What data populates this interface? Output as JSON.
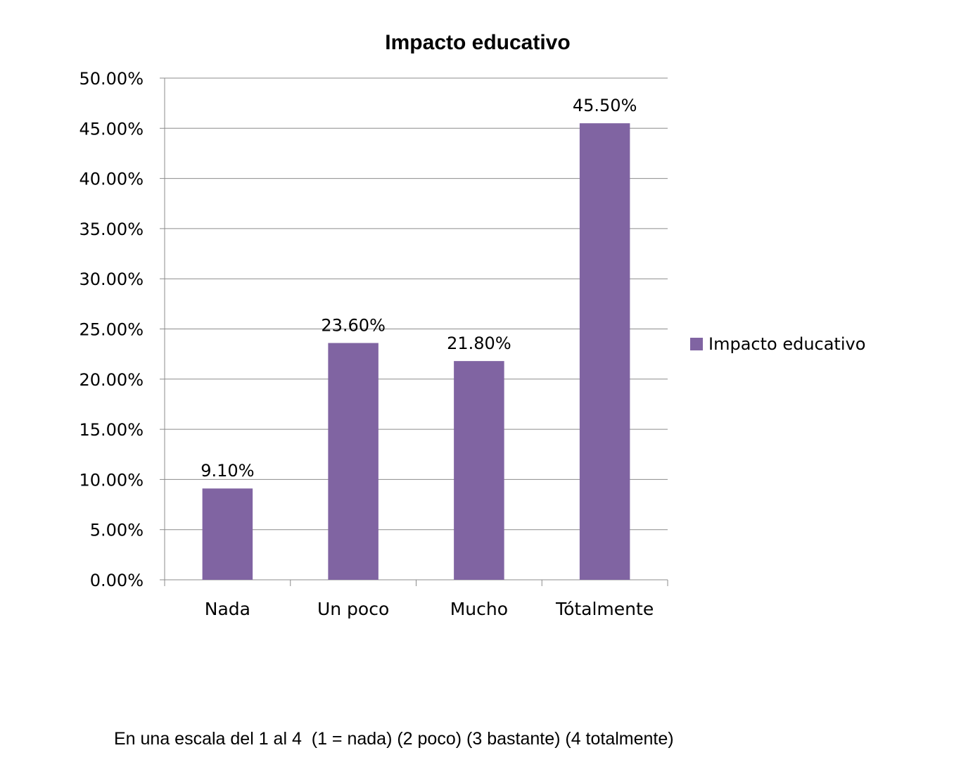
{
  "chart_data": {
    "type": "bar",
    "title": "Impacto educativo",
    "categories": [
      "Nada",
      "Un poco",
      "Mucho",
      "Tótalmente"
    ],
    "series": [
      {
        "name": "Impacto educativo",
        "values": [
          9.1,
          23.6,
          21.8,
          45.5
        ],
        "data_labels": [
          "9.10%",
          "23.60%",
          "21.80%",
          "45.50%"
        ]
      }
    ],
    "ylim": [
      0,
      50
    ],
    "yticks": [
      0,
      5,
      10,
      15,
      20,
      25,
      30,
      35,
      40,
      45,
      50
    ],
    "ytick_labels": [
      "0.00%",
      "5.00%",
      "10.00%",
      "15.00%",
      "20.00%",
      "25.00%",
      "30.00%",
      "35.00%",
      "40.00%",
      "45.00%",
      "50.00%"
    ],
    "grid": true,
    "legend": {
      "placement": "right",
      "entries": [
        "Impacto educativo"
      ]
    },
    "bar_color": "#8064A2"
  },
  "footnote": "En una escala del 1 al 4  (1 = nada) (2 poco) (3 bastante) (4 totalmente)"
}
